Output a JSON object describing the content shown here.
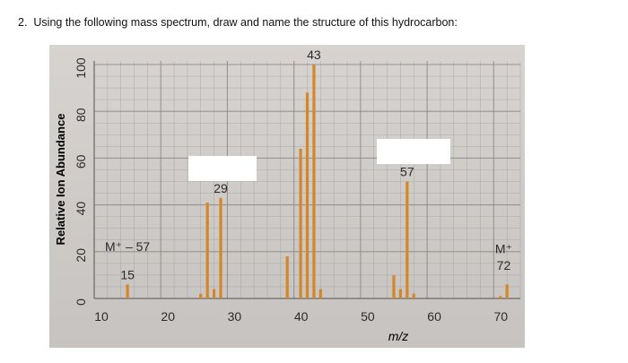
{
  "question": {
    "number": "2.",
    "text": "Using the following mass spectrum, draw and name the structure of this hydrocarbon:"
  },
  "colors": {
    "bar": "#d4862a",
    "grid": "#8e8a87",
    "mask": "#ffffff",
    "axis_text": "#2c2c2c"
  },
  "chart_data": {
    "type": "bar",
    "title": "",
    "xlabel": "m/z",
    "ylabel": "Relative Ion Abundance",
    "xlim": [
      10,
      74
    ],
    "ylim": [
      0,
      100
    ],
    "x_ticks": [
      "10",
      "20",
      "30",
      "40",
      "50",
      "60",
      "70"
    ],
    "y_ticks": [
      "0",
      "20",
      "40",
      "60",
      "80",
      "100"
    ],
    "grid": true,
    "legend": "none",
    "peaks": [
      {
        "x": 15,
        "y": 6
      },
      {
        "x": 26,
        "y": 2
      },
      {
        "x": 27,
        "y": 41
      },
      {
        "x": 28,
        "y": 4
      },
      {
        "x": 29,
        "y": 43
      },
      {
        "x": 39,
        "y": 18
      },
      {
        "x": 41,
        "y": 64
      },
      {
        "x": 42,
        "y": 88
      },
      {
        "x": 43,
        "y": 100
      },
      {
        "x": 44,
        "y": 4
      },
      {
        "x": 55,
        "y": 10
      },
      {
        "x": 56,
        "y": 4
      },
      {
        "x": 57,
        "y": 50
      },
      {
        "x": 58,
        "y": 2
      },
      {
        "x": 71,
        "y": 1
      },
      {
        "x": 72,
        "y": 6
      }
    ],
    "annotations": [
      {
        "text": "43",
        "x": 43,
        "y": 100
      },
      {
        "text": "29",
        "x": 29,
        "y": 43
      },
      {
        "text": "57",
        "x": 57,
        "y": 50
      },
      {
        "text": "15",
        "x": 15,
        "y": 6
      },
      {
        "text": "M⁺ – 57",
        "x": 15,
        "y": 18
      },
      {
        "text": "M⁺",
        "x": 71.5,
        "y": 17
      },
      {
        "text": "72",
        "x": 71.5,
        "y": 10
      }
    ]
  }
}
